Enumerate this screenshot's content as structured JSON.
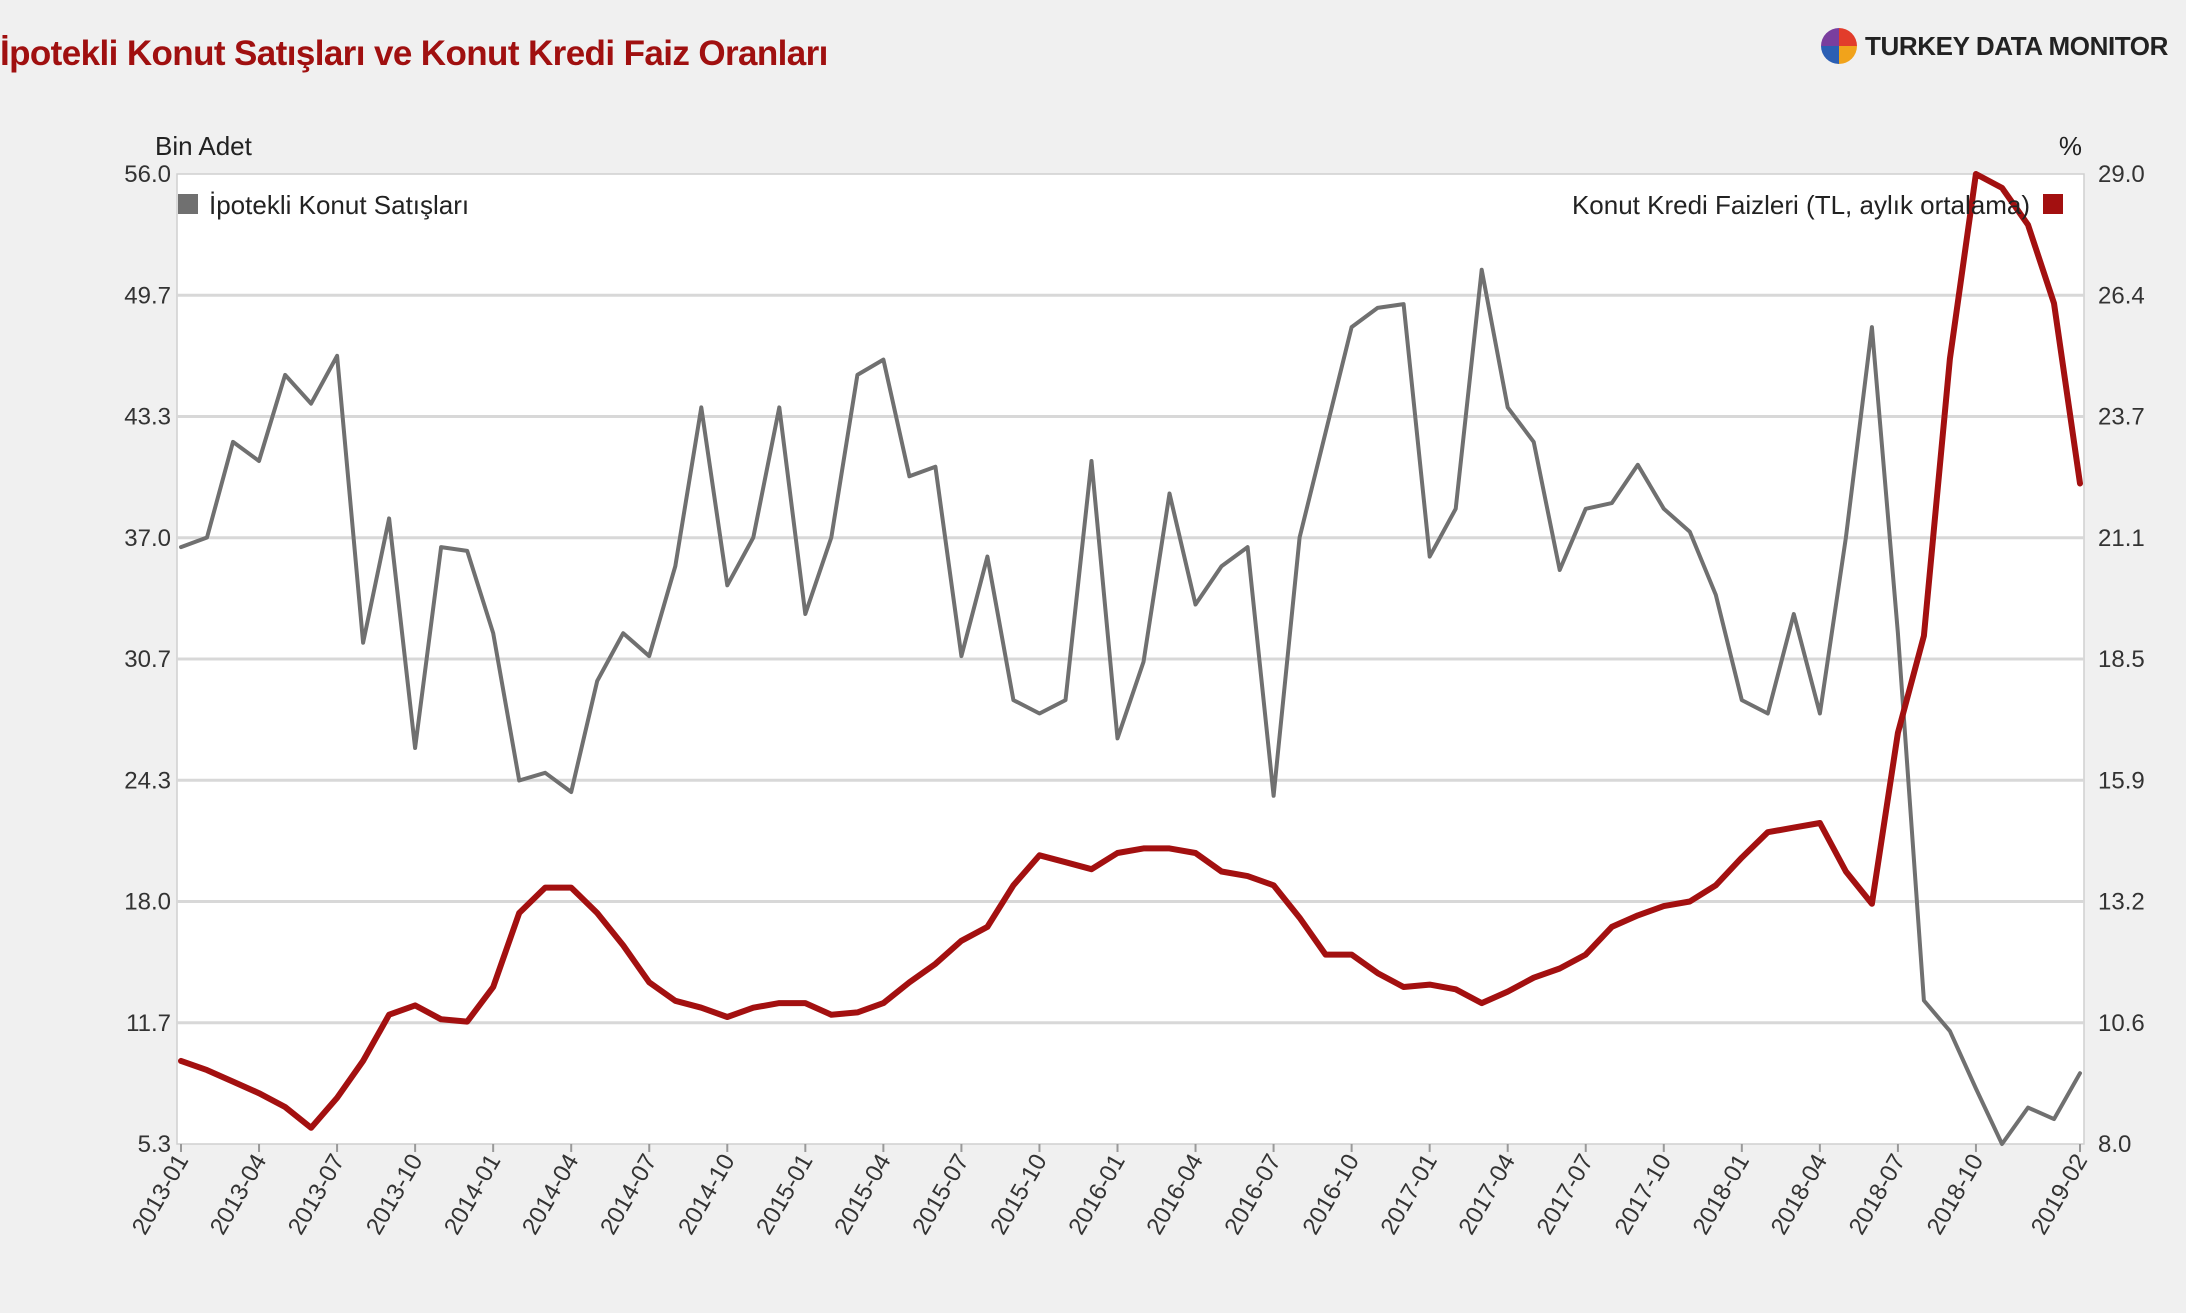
{
  "header": {
    "title": "İpotekli Konut Satışları ve Konut Kredi Faiz Oranları",
    "brand": "TURKEY DATA MONITOR",
    "brand_icon": "pie-logo-icon"
  },
  "colors": {
    "sales": "#707070",
    "rates": "#a31010",
    "grid": "#d8d8d8",
    "plot_bg": "#ffffff",
    "page_bg": "#f0f0f0"
  },
  "chart_data": {
    "type": "line",
    "title": "İpotekli Konut Satışları ve Konut Kredi Faiz Oranları",
    "x": [
      "2013-01",
      "2013-02",
      "2013-03",
      "2013-04",
      "2013-05",
      "2013-06",
      "2013-07",
      "2013-08",
      "2013-09",
      "2013-10",
      "2013-11",
      "2013-12",
      "2014-01",
      "2014-02",
      "2014-03",
      "2014-04",
      "2014-05",
      "2014-06",
      "2014-07",
      "2014-08",
      "2014-09",
      "2014-10",
      "2014-11",
      "2014-12",
      "2015-01",
      "2015-02",
      "2015-03",
      "2015-04",
      "2015-05",
      "2015-06",
      "2015-07",
      "2015-08",
      "2015-09",
      "2015-10",
      "2015-11",
      "2015-12",
      "2016-01",
      "2016-02",
      "2016-03",
      "2016-04",
      "2016-05",
      "2016-06",
      "2016-07",
      "2016-08",
      "2016-09",
      "2016-10",
      "2016-11",
      "2016-12",
      "2017-01",
      "2017-02",
      "2017-03",
      "2017-04",
      "2017-05",
      "2017-06",
      "2017-07",
      "2017-08",
      "2017-09",
      "2017-10",
      "2017-11",
      "2017-12",
      "2018-01",
      "2018-02",
      "2018-03",
      "2018-04",
      "2018-05",
      "2018-06",
      "2018-07",
      "2018-08",
      "2018-09",
      "2018-10",
      "2018-11",
      "2018-12",
      "2019-01",
      "2019-02"
    ],
    "x_tick_labels": [
      "2013-01",
      "2013-04",
      "2013-07",
      "2013-10",
      "2014-01",
      "2014-04",
      "2014-07",
      "2014-10",
      "2015-01",
      "2015-04",
      "2015-07",
      "2015-10",
      "2016-01",
      "2016-04",
      "2016-07",
      "2016-10",
      "2017-01",
      "2017-04",
      "2017-07",
      "2017-10",
      "2018-01",
      "2018-04",
      "2018-07",
      "2018-10",
      "2019-02"
    ],
    "left_axis": {
      "unit": "Bin Adet",
      "range": [
        5.3,
        56.0
      ],
      "ticks": [
        "56.0",
        "49.7",
        "43.3",
        "37.0",
        "30.7",
        "24.3",
        "18.0",
        "11.7",
        "5.3"
      ]
    },
    "right_axis": {
      "unit": "%",
      "range": [
        8.0,
        29.0
      ],
      "ticks": [
        "29.0",
        "26.4",
        "23.7",
        "21.1",
        "18.5",
        "15.9",
        "13.2",
        "10.6",
        "8.0"
      ]
    },
    "grid": true,
    "series": [
      {
        "name": "İpotekli Konut Satışları",
        "axis": "left",
        "legend_position": "top-left",
        "values": [
          36.5,
          37.0,
          42.0,
          41.0,
          45.5,
          44.0,
          46.5,
          31.5,
          38.0,
          26.0,
          36.5,
          36.3,
          32.0,
          24.3,
          24.7,
          23.7,
          29.5,
          32.0,
          30.8,
          35.5,
          43.8,
          34.5,
          37.0,
          43.8,
          33.0,
          37.0,
          45.5,
          46.3,
          40.2,
          40.7,
          30.8,
          36.0,
          28.5,
          27.8,
          28.5,
          41.0,
          26.5,
          30.5,
          39.3,
          33.5,
          35.5,
          36.5,
          23.5,
          37.0,
          42.5,
          48.0,
          49.0,
          49.2,
          36.0,
          38.5,
          51.0,
          43.8,
          42.0,
          35.3,
          38.5,
          38.8,
          40.8,
          38.5,
          37.3,
          34.0,
          28.5,
          27.8,
          33.0,
          27.8,
          37.0,
          48.0,
          32.0,
          12.8,
          11.2,
          8.2,
          5.3,
          7.2,
          6.6,
          9.0
        ]
      },
      {
        "name": "Konut Kredi Faizleri (TL, aylık ortalama)",
        "axis": "right",
        "legend_position": "top-right",
        "values": [
          9.8,
          9.6,
          9.35,
          9.1,
          8.8,
          8.35,
          9.0,
          9.8,
          10.8,
          11.0,
          10.7,
          10.65,
          11.4,
          13.0,
          13.55,
          13.55,
          13.0,
          12.3,
          11.5,
          11.1,
          10.95,
          10.75,
          10.95,
          11.05,
          11.05,
          10.8,
          10.85,
          11.05,
          11.5,
          11.9,
          12.4,
          12.7,
          13.6,
          14.25,
          14.1,
          13.95,
          14.3,
          14.4,
          14.4,
          14.3,
          13.9,
          13.8,
          13.6,
          12.9,
          12.1,
          12.1,
          11.7,
          11.4,
          11.45,
          11.35,
          11.05,
          11.3,
          11.6,
          11.8,
          12.1,
          12.7,
          12.95,
          13.15,
          13.25,
          13.6,
          14.2,
          14.75,
          14.85,
          14.95,
          13.9,
          13.2,
          16.9,
          19.0,
          25.0,
          29.0,
          28.7,
          27.9,
          26.2,
          22.3
        ]
      }
    ]
  }
}
